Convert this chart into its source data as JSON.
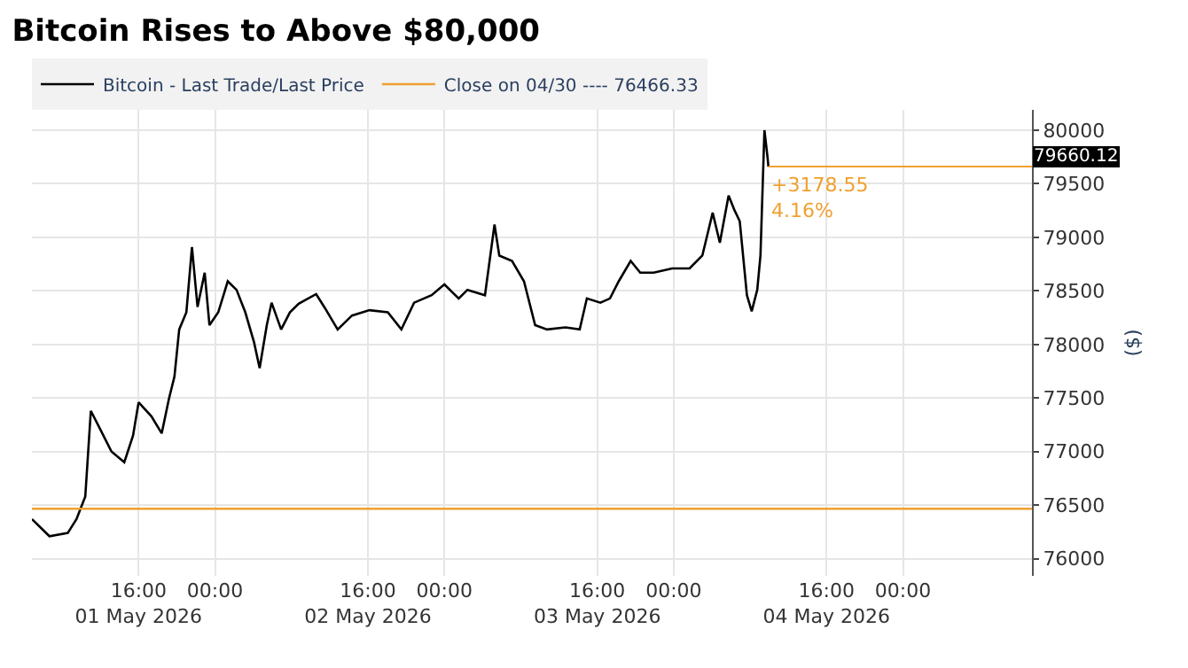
{
  "chart_data": {
    "type": "line",
    "title": "Bitcoin Rises to Above $80,000",
    "ylabel": "($)",
    "x": [
      "2026-05-01T04:50",
      "2026-05-01T06:40",
      "2026-05-01T08:35",
      "2026-05-01T09:30",
      "2026-05-01T10:25",
      "2026-05-01T11:00",
      "2026-05-01T11:55",
      "2026-05-01T13:10",
      "2026-05-01T14:30",
      "2026-05-01T15:25",
      "2026-05-01T16:00",
      "2026-05-01T17:20",
      "2026-05-01T18:25",
      "2026-05-01T19:10",
      "2026-05-01T19:45",
      "2026-05-01T20:15",
      "2026-05-01T21:00",
      "2026-05-01T21:35",
      "2026-05-01T22:10",
      "2026-05-01T22:55",
      "2026-05-01T23:25",
      "2026-05-02T00:20",
      "2026-05-02T01:20",
      "2026-05-02T02:15",
      "2026-05-02T03:10",
      "2026-05-02T04:05",
      "2026-05-02T04:40",
      "2026-05-02T05:25",
      "2026-05-02T05:55",
      "2026-05-02T06:55",
      "2026-05-02T07:50",
      "2026-05-02T08:45",
      "2026-05-02T10:35",
      "2026-05-02T11:30",
      "2026-05-02T12:50",
      "2026-05-02T14:20",
      "2026-05-02T16:10",
      "2026-05-02T18:05",
      "2026-05-02T19:30",
      "2026-05-02T20:50",
      "2026-05-02T22:40",
      "2026-05-03T00:00",
      "2026-05-03T01:30",
      "2026-05-03T02:25",
      "2026-05-03T04:15",
      "2026-05-03T05:15",
      "2026-05-03T05:45",
      "2026-05-03T07:05",
      "2026-05-03T08:20",
      "2026-05-03T09:30",
      "2026-05-03T10:45",
      "2026-05-03T12:40",
      "2026-05-03T14:10",
      "2026-05-03T14:55",
      "2026-05-03T16:20",
      "2026-05-03T17:20",
      "2026-05-03T18:15",
      "2026-05-03T19:30",
      "2026-05-03T20:30",
      "2026-05-03T21:55",
      "2026-05-03T23:50",
      "2026-05-04T01:40",
      "2026-05-04T03:00",
      "2026-05-04T04:05",
      "2026-05-04T04:50",
      "2026-05-04T05:45",
      "2026-05-04T06:20",
      "2026-05-04T06:55",
      "2026-05-04T07:40",
      "2026-05-04T08:10",
      "2026-05-04T08:45",
      "2026-05-04T09:05",
      "2026-05-04T09:30",
      "2026-05-04T09:50",
      "2026-05-04T09:55"
    ],
    "series": [
      {
        "name": "Bitcoin - Last Trade/Last Price",
        "color": "#000000",
        "values": [
          76370,
          76210,
          76240,
          76370,
          76580,
          77380,
          77220,
          77000,
          76900,
          77150,
          77460,
          77330,
          77170,
          77490,
          77700,
          78140,
          78300,
          78910,
          78350,
          78670,
          78180,
          78300,
          78590,
          78510,
          78300,
          78020,
          77780,
          78180,
          78390,
          78140,
          78300,
          78380,
          78470,
          78340,
          78140,
          78270,
          78320,
          78300,
          78140,
          78390,
          78460,
          78560,
          78430,
          78510,
          78460,
          79120,
          78830,
          78780,
          78590,
          78180,
          78140,
          78160,
          78140,
          78430,
          78390,
          78430,
          78590,
          78780,
          78670,
          78670,
          78710,
          78710,
          78830,
          79230,
          78950,
          79390,
          79260,
          79150,
          78460,
          78310,
          78510,
          78830,
          80000,
          79740,
          79660.12
        ]
      },
      {
        "name": "Close on 04/30 ---- 76466.33",
        "color": "#f0a030",
        "x": [
          "2026-05-01T04:50",
          "2026-05-05T13:30"
        ],
        "values": [
          76466.33,
          76466.33
        ]
      }
    ],
    "ref_lines": [
      {
        "axis": "y",
        "value": 79660.12,
        "label": "79660.12",
        "color": "#f0a030"
      }
    ],
    "annotations": [
      {
        "text": "+3178.55\n4.16%",
        "x": "2026-05-04T09:55",
        "y": 79660.12
      }
    ],
    "xlim": [
      "2026-05-01T04:50",
      "2026-05-05T13:30"
    ],
    "xticks": [
      {
        "value": "2026-05-01T16:00",
        "label": "16:00\n01 May 2026"
      },
      {
        "value": "2026-05-02T00:00",
        "label": "00:00"
      },
      {
        "value": "2026-05-02T16:00",
        "label": "16:00\n02 May 2026"
      },
      {
        "value": "2026-05-03T00:00",
        "label": "00:00"
      },
      {
        "value": "2026-05-03T16:00",
        "label": "16:00\n03 May 2026"
      },
      {
        "value": "2026-05-04T00:00",
        "label": "00:00"
      },
      {
        "value": "2026-05-04T16:00",
        "label": "16:00\n04 May 2026"
      },
      {
        "value": "2026-05-05T00:00",
        "label": "00:00"
      }
    ],
    "ylim": [
      75840,
      80190
    ],
    "yticks": [
      76000,
      76500,
      77000,
      77500,
      78000,
      78500,
      79000,
      79500,
      80000
    ],
    "grid": true,
    "legend": "top left",
    "marker": "none",
    "line_style": "solid"
  }
}
